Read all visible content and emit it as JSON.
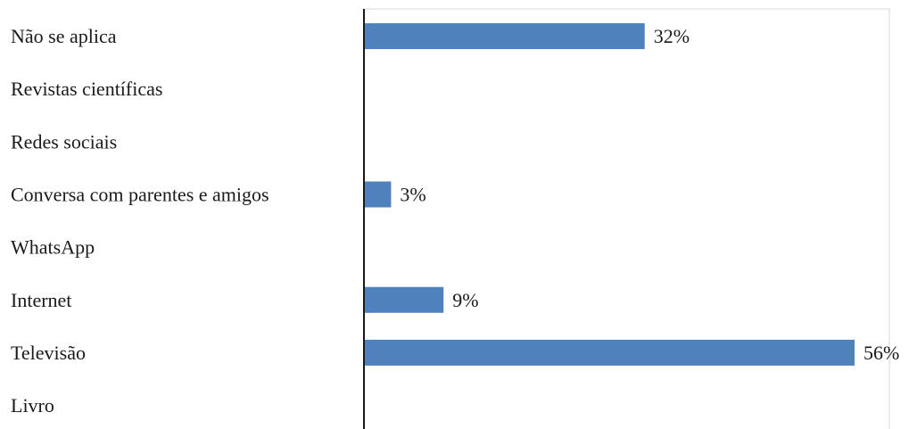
{
  "chart_data": {
    "type": "bar",
    "orientation": "horizontal",
    "categories": [
      "Não se aplica",
      "Revistas científicas",
      "Redes sociais",
      "Conversa com parentes e amigos",
      "WhatsApp",
      "Internet",
      "Televisão",
      "Livro"
    ],
    "values": [
      32,
      0,
      0,
      3,
      0,
      9,
      56,
      0
    ],
    "data_labels": [
      "32%",
      "",
      "",
      "3%",
      "",
      "9%",
      "56%",
      ""
    ],
    "unit": "%",
    "xlim": [
      0,
      57
    ],
    "title": "",
    "xlabel": "",
    "ylabel": "",
    "legend": "none",
    "grid": false,
    "bar_color": "#4f81bd"
  }
}
